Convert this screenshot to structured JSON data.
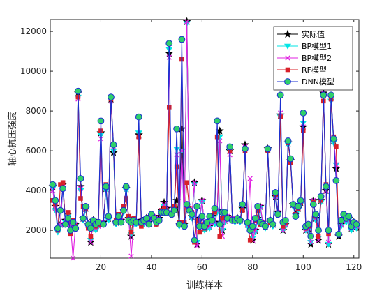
{
  "chart_data": {
    "type": "line",
    "title": "",
    "xlabel": "训练样本",
    "ylabel": "轴心抗压强度",
    "xlim": [
      0,
      122
    ],
    "ylim": [
      600,
      12600
    ],
    "xticks": [
      20,
      40,
      60,
      80,
      100,
      120
    ],
    "yticks": [
      2000,
      4000,
      6000,
      8000,
      10000,
      12000
    ],
    "grid": false,
    "legend_position": "top-right",
    "x": [
      1,
      2,
      3,
      4,
      5,
      6,
      7,
      8,
      9,
      10,
      11,
      12,
      13,
      14,
      15,
      16,
      17,
      18,
      19,
      20,
      21,
      22,
      23,
      24,
      25,
      26,
      27,
      28,
      29,
      30,
      31,
      32,
      33,
      34,
      35,
      36,
      37,
      38,
      39,
      40,
      41,
      42,
      43,
      44,
      45,
      46,
      47,
      48,
      49,
      50,
      51,
      52,
      53,
      54,
      55,
      56,
      57,
      58,
      59,
      60,
      61,
      62,
      63,
      64,
      65,
      66,
      67,
      68,
      69,
      70,
      71,
      72,
      73,
      74,
      75,
      76,
      77,
      78,
      79,
      80,
      81,
      82,
      83,
      84,
      85,
      86,
      87,
      88,
      89,
      90,
      91,
      92,
      93,
      94,
      95,
      96,
      97,
      98,
      99,
      100,
      101,
      102,
      103,
      104,
      105,
      106,
      107,
      108,
      109,
      110,
      111,
      112,
      113,
      114,
      115,
      116,
      117,
      118,
      119,
      120,
      121
    ],
    "series": [
      {
        "name": "实际值",
        "color": "#000000",
        "marker": "star",
        "values": [
          4200,
          3200,
          2100,
          2300,
          4300,
          2500,
          2800,
          2300,
          2200,
          2300,
          8900,
          4200,
          2600,
          3100,
          2300,
          1400,
          2500,
          2100,
          2300,
          6900,
          2400,
          4100,
          2600,
          8600,
          5900,
          2400,
          2600,
          2500,
          3000,
          4100,
          2600,
          1700,
          2400,
          2400,
          6800,
          2500,
          2400,
          2600,
          2400,
          2700,
          2700,
          2400,
          2600,
          3000,
          3400,
          3100,
          10900,
          2900,
          3100,
          3500,
          2300,
          7100,
          2300,
          12500,
          3000,
          2700,
          4400,
          1300,
          2600,
          3500,
          2100,
          2200,
          2200,
          2700,
          2400,
          3000,
          7000,
          2000,
          2500,
          2700,
          6000,
          2600,
          2500,
          2600,
          2500,
          3100,
          6300,
          2300,
          2300,
          1500,
          2000,
          2600,
          3200,
          2400,
          2200,
          6100,
          2500,
          2300,
          3700,
          2900,
          7800,
          2000,
          2300,
          6400,
          5500,
          3300,
          2800,
          3100,
          3400,
          7200,
          2000,
          2100,
          1300,
          3500,
          2600,
          1500,
          3500,
          8900,
          4000,
          1300,
          8700,
          6500,
          5100,
          1700,
          2300,
          2600,
          2500,
          2600,
          2100,
          2400,
          2200
        ]
      },
      {
        "name": "BP模型1",
        "color": "#00e5e5",
        "marker": "triangle-down",
        "values": [
          4100,
          3000,
          1900,
          2200,
          4100,
          2400,
          2700,
          2200,
          2100,
          2200,
          8700,
          4000,
          2500,
          3000,
          2200,
          1500,
          2400,
          2000,
          2200,
          6800,
          2300,
          4000,
          2500,
          8600,
          6000,
          2300,
          2500,
          2400,
          2900,
          4000,
          2500,
          1800,
          2300,
          2300,
          6900,
          2400,
          2300,
          2500,
          2300,
          2600,
          2600,
          2300,
          2500,
          2900,
          3200,
          3000,
          11100,
          2800,
          3000,
          6100,
          2200,
          6000,
          2200,
          12400,
          2900,
          2600,
          4300,
          1400,
          2500,
          3400,
          2000,
          2100,
          2100,
          2600,
          2300,
          2900,
          6700,
          2000,
          2400,
          2600,
          6000,
          2500,
          2400,
          2500,
          2400,
          3000,
          6100,
          2200,
          2200,
          1600,
          1900,
          2500,
          3100,
          2300,
          2100,
          6000,
          2400,
          2200,
          3600,
          2800,
          7700,
          2000,
          2200,
          6300,
          5500,
          3200,
          2700,
          3000,
          3300,
          7400,
          2000,
          2000,
          1400,
          3400,
          2500,
          1600,
          3400,
          8700,
          4100,
          1300,
          8500,
          6400,
          5300,
          1800,
          2200,
          2500,
          2400,
          2500,
          2000,
          2300,
          2100
        ]
      },
      {
        "name": "BP模型2",
        "color": "#e020e0",
        "marker": "x",
        "values": [
          4000,
          3100,
          2000,
          2300,
          4200,
          2500,
          2600,
          2300,
          600,
          2300,
          8600,
          4100,
          2600,
          3100,
          2300,
          1400,
          2500,
          2100,
          2200,
          6600,
          2400,
          4200,
          2600,
          8500,
          6200,
          2400,
          2600,
          2500,
          3000,
          4100,
          2600,
          700,
          2400,
          2400,
          6700,
          2500,
          2400,
          2600,
          2400,
          2700,
          2700,
          2400,
          2600,
          3000,
          3300,
          3100,
          10700,
          2900,
          3100,
          5800,
          2300,
          6000,
          2300,
          12500,
          3000,
          2700,
          4400,
          1200,
          2600,
          3500,
          2100,
          2200,
          2200,
          2700,
          2400,
          3000,
          6500,
          1700,
          2500,
          2700,
          5800,
          2600,
          2500,
          2600,
          2500,
          3100,
          6200,
          2300,
          4600,
          1500,
          2000,
          2600,
          3200,
          2400,
          2200,
          6100,
          2500,
          2300,
          3700,
          2900,
          7900,
          2000,
          2300,
          6400,
          5500,
          3300,
          2800,
          3100,
          3400,
          7200,
          2000,
          2100,
          1400,
          3500,
          2600,
          1500,
          3500,
          8900,
          4000,
          1400,
          8600,
          6600,
          5300,
          1800,
          2300,
          2600,
          2500,
          2600,
          2100,
          2400,
          2200
        ]
      },
      {
        "name": "RF模型",
        "color": "#d8202a",
        "marker": "square",
        "values": [
          3500,
          3300,
          2000,
          4300,
          4400,
          2300,
          2900,
          1800,
          2500,
          2200,
          8700,
          3600,
          3200,
          3100,
          2100,
          1700,
          2500,
          2200,
          2300,
          7000,
          2300,
          4300,
          2700,
          8600,
          6300,
          2500,
          2800,
          2400,
          3200,
          3600,
          2700,
          1900,
          2600,
          2400,
          6700,
          2200,
          2500,
          2600,
          2300,
          2800,
          2600,
          2300,
          2500,
          3000,
          3100,
          3000,
          8200,
          2800,
          3200,
          5200,
          2400,
          10600,
          2400,
          4400,
          3100,
          2900,
          1400,
          2500,
          1900,
          2300,
          2100,
          2300,
          2600,
          2500,
          2900,
          6700,
          1700,
          2600,
          2700,
          2600,
          6000,
          2500,
          2500,
          2600,
          2500,
          3000,
          6000,
          2400,
          1500,
          2100,
          2500,
          3000,
          2300,
          2300,
          2200,
          6000,
          2400,
          2300,
          3800,
          2800,
          7700,
          2200,
          2400,
          6400,
          5400,
          3300,
          2800,
          3100,
          3400,
          7000,
          2100,
          2200,
          1700,
          3400,
          2700,
          1700,
          3500,
          8500,
          4300,
          1800,
          8600,
          6700,
          6200,
          1800,
          2500,
          2600,
          2600,
          2600,
          2200,
          2400,
          2300
        ]
      },
      {
        "name": "DNN模型",
        "color": "#1a2fd0",
        "marker": "circle",
        "face": "#2fd06a",
        "values": [
          4300,
          3500,
          2100,
          3000,
          4100,
          2300,
          2600,
          2000,
          2400,
          2100,
          9000,
          4600,
          2600,
          3200,
          2300,
          2100,
          2500,
          2300,
          2400,
          7500,
          2300,
          4200,
          2700,
          8700,
          6300,
          2400,
          2700,
          2400,
          3000,
          4200,
          2500,
          2400,
          2500,
          2400,
          7700,
          2400,
          2500,
          2600,
          2300,
          2800,
          2600,
          2400,
          2500,
          2900,
          2900,
          2900,
          11400,
          2800,
          3000,
          7100,
          2300,
          11600,
          2200,
          3300,
          3000,
          2800,
          1500,
          3200,
          2200,
          2700,
          2200,
          2400,
          2700,
          2500,
          3100,
          7500,
          2300,
          2900,
          2900,
          2600,
          6200,
          2500,
          2500,
          2600,
          2500,
          3300,
          6100,
          2400,
          2000,
          2200,
          2600,
          3200,
          2400,
          2300,
          2200,
          6100,
          2500,
          2300,
          3900,
          2800,
          8800,
          2400,
          2500,
          6500,
          5600,
          3300,
          2700,
          3200,
          3500,
          7900,
          2200,
          2300,
          1700,
          3300,
          2800,
          2000,
          3700,
          8800,
          4200,
          2000,
          8800,
          6600,
          4500,
          1800,
          2500,
          2800,
          2600,
          2700,
          2200,
          2400,
          2300
        ]
      }
    ]
  }
}
